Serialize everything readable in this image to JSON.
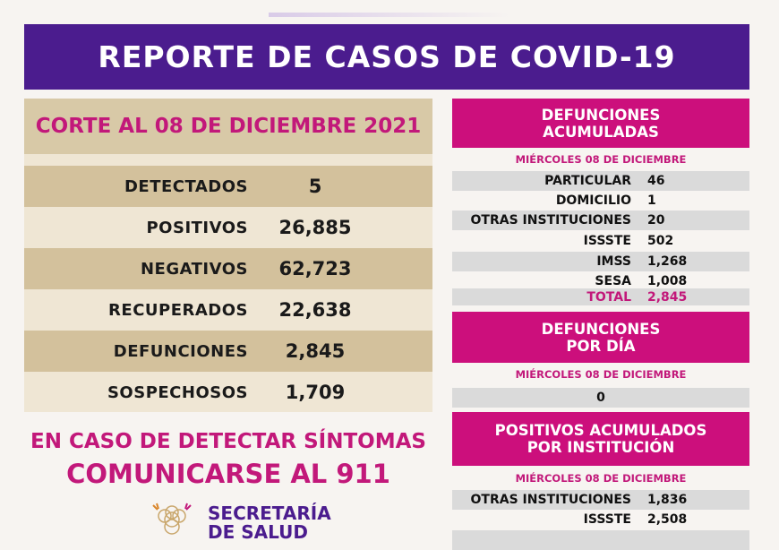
{
  "title": "REPORTE DE CASOS DE COVID-19",
  "left": {
    "corte": "CORTE AL 08 DE DICIEMBRE 2021",
    "rows": [
      {
        "label": "DETECTADOS",
        "value": "5"
      },
      {
        "label": "POSITIVOS",
        "value": "26,885"
      },
      {
        "label": "NEGATIVOS",
        "value": "62,723"
      },
      {
        "label": "RECUPERADOS",
        "value": "22,638"
      },
      {
        "label": "DEFUNCIONES",
        "value": "2,845"
      },
      {
        "label": "SOSPECHOSOS",
        "value": "1,709"
      }
    ]
  },
  "defunciones_acumuladas": {
    "title_line1": "DEFUNCIONES",
    "title_line2": "ACUMULADAS",
    "date": "MIÉRCOLES 08 DE DICIEMBRE",
    "rows": [
      {
        "label": "PARTICULAR",
        "value": "46"
      },
      {
        "label": "DOMICILIO",
        "value": "1"
      },
      {
        "label": "OTRAS INSTITUCIONES",
        "value": "20"
      },
      {
        "label": "ISSSTE",
        "value": "502"
      },
      {
        "label": "IMSS",
        "value": "1,268"
      },
      {
        "label": "SESA",
        "value": "1,008"
      },
      {
        "label": "TOTAL",
        "value": "2,845"
      }
    ]
  },
  "defunciones_dia": {
    "title_line1": "DEFUNCIONES",
    "title_line2": "POR DÍA",
    "date": "MIÉRCOLES 08 DE DICIEMBRE",
    "value": "0"
  },
  "positivos_institucion": {
    "title_line1": "POSITIVOS ACUMULADOS",
    "title_line2": "POR INSTITUCIÓN",
    "date": "MIÉRCOLES 08 DE DICIEMBRE",
    "rows": [
      {
        "label": "OTRAS INSTITUCIONES",
        "value": "1,836"
      },
      {
        "label": "ISSSTE",
        "value": "2,508"
      }
    ]
  },
  "cta": {
    "line1": "EN CASO DE DETECTAR SÍNTOMAS",
    "line2": "COMUNICARSE AL 911"
  },
  "logo": {
    "line1": "SECRETARÍA",
    "line2": "DE SALUD"
  },
  "colors": {
    "purple": "#4b1c8e",
    "pink": "#cc0f7c",
    "tan": "#d3c19c"
  }
}
